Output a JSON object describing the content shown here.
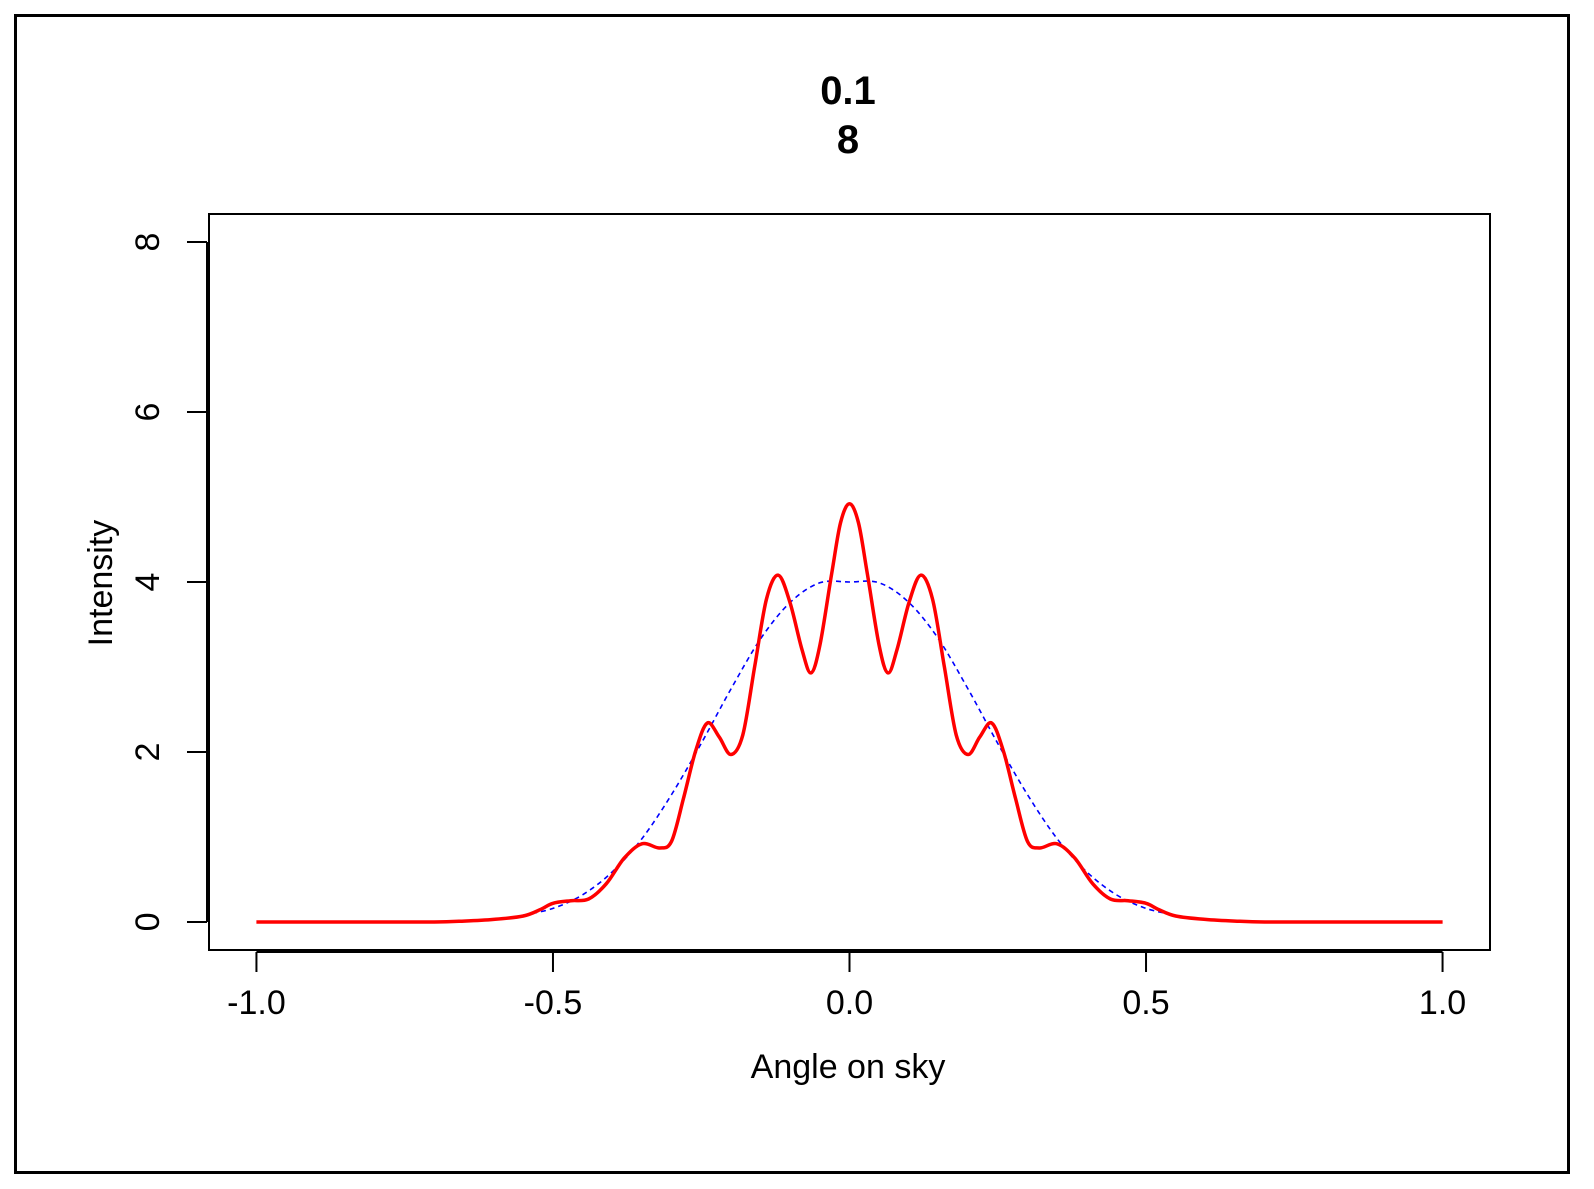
{
  "chart_data": {
    "type": "line",
    "title_lines": [
      "0.1",
      "8"
    ],
    "xlabel": "Angle on sky",
    "ylabel": "Intensity",
    "xlim": [
      -1.08,
      1.08
    ],
    "ylim": [
      -0.33,
      8.33
    ],
    "x_ticks": [
      -1.0,
      -0.5,
      0.0,
      0.5,
      1.0
    ],
    "x_tick_labels": [
      "-1.0",
      "-0.5",
      "0.0",
      "0.5",
      "1.0"
    ],
    "y_ticks": [
      0,
      2,
      4,
      6,
      8
    ],
    "y_tick_labels": [
      "0",
      "2",
      "4",
      "6",
      "8"
    ],
    "grid": false,
    "series": [
      {
        "style": "solid",
        "color": "#ff0000",
        "points": [
          [
            -1.0,
            0.0
          ],
          [
            -0.8,
            0.0
          ],
          [
            -0.7,
            0.0
          ],
          [
            -0.65,
            0.01
          ],
          [
            -0.6,
            0.03
          ],
          [
            -0.55,
            0.07
          ],
          [
            -0.52,
            0.15
          ],
          [
            -0.5,
            0.22
          ],
          [
            -0.47,
            0.25
          ],
          [
            -0.44,
            0.27
          ],
          [
            -0.41,
            0.45
          ],
          [
            -0.38,
            0.75
          ],
          [
            -0.35,
            0.92
          ],
          [
            -0.32,
            0.87
          ],
          [
            -0.3,
            0.95
          ],
          [
            -0.28,
            1.45
          ],
          [
            -0.26,
            2.0
          ],
          [
            -0.24,
            2.34
          ],
          [
            -0.22,
            2.18
          ],
          [
            -0.2,
            1.97
          ],
          [
            -0.18,
            2.2
          ],
          [
            -0.16,
            3.0
          ],
          [
            -0.14,
            3.8
          ],
          [
            -0.12,
            4.08
          ],
          [
            -0.1,
            3.75
          ],
          [
            -0.08,
            3.2
          ],
          [
            -0.065,
            2.93
          ],
          [
            -0.05,
            3.25
          ],
          [
            -0.03,
            4.1
          ],
          [
            -0.015,
            4.7
          ],
          [
            0.0,
            4.92
          ],
          [
            0.015,
            4.7
          ],
          [
            0.03,
            4.1
          ],
          [
            0.05,
            3.25
          ],
          [
            0.065,
            2.93
          ],
          [
            0.08,
            3.2
          ],
          [
            0.1,
            3.75
          ],
          [
            0.12,
            4.08
          ],
          [
            0.14,
            3.8
          ],
          [
            0.16,
            3.0
          ],
          [
            0.18,
            2.2
          ],
          [
            0.2,
            1.97
          ],
          [
            0.22,
            2.18
          ],
          [
            0.24,
            2.34
          ],
          [
            0.26,
            2.0
          ],
          [
            0.28,
            1.45
          ],
          [
            0.3,
            0.95
          ],
          [
            0.32,
            0.87
          ],
          [
            0.35,
            0.92
          ],
          [
            0.38,
            0.75
          ],
          [
            0.41,
            0.45
          ],
          [
            0.44,
            0.27
          ],
          [
            0.47,
            0.25
          ],
          [
            0.5,
            0.22
          ],
          [
            0.52,
            0.15
          ],
          [
            0.55,
            0.07
          ],
          [
            0.6,
            0.03
          ],
          [
            0.65,
            0.01
          ],
          [
            0.7,
            0.0
          ],
          [
            0.8,
            0.0
          ],
          [
            1.0,
            0.0
          ]
        ]
      },
      {
        "style": "dashed",
        "color": "#0000ff",
        "points": [
          [
            -0.55,
            0.08
          ],
          [
            -0.5,
            0.16
          ],
          [
            -0.45,
            0.32
          ],
          [
            -0.4,
            0.59
          ],
          [
            -0.35,
            0.98
          ],
          [
            -0.3,
            1.5
          ],
          [
            -0.25,
            2.1
          ],
          [
            -0.2,
            2.74
          ],
          [
            -0.15,
            3.33
          ],
          [
            -0.1,
            3.76
          ],
          [
            -0.05,
            3.99
          ],
          [
            0.0,
            4.0
          ],
          [
            0.05,
            3.99
          ],
          [
            0.1,
            3.76
          ],
          [
            0.15,
            3.33
          ],
          [
            0.2,
            2.74
          ],
          [
            0.25,
            2.1
          ],
          [
            0.3,
            1.5
          ],
          [
            0.35,
            0.98
          ],
          [
            0.4,
            0.59
          ],
          [
            0.45,
            0.32
          ],
          [
            0.5,
            0.16
          ],
          [
            0.55,
            0.08
          ]
        ]
      }
    ]
  }
}
